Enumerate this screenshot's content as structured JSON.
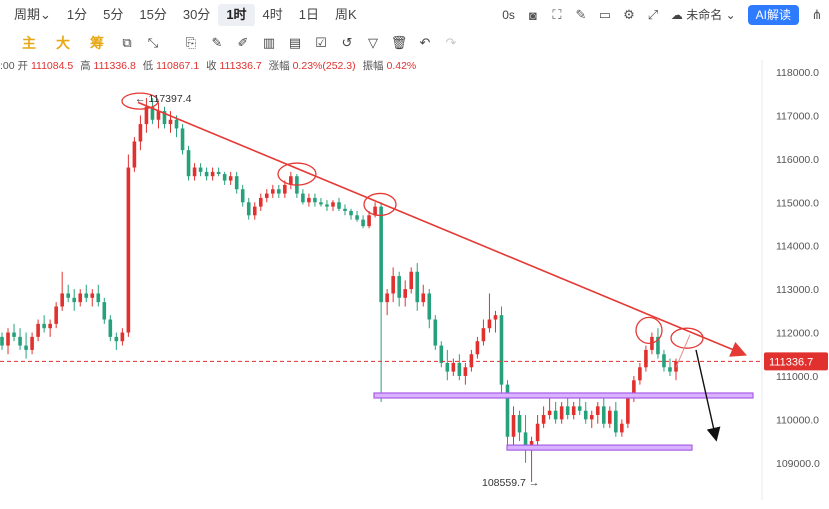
{
  "toolbar": {
    "timeframes": [
      {
        "label": "周期⌄",
        "active": false
      },
      {
        "label": "1分",
        "active": false
      },
      {
        "label": "5分",
        "active": false
      },
      {
        "label": "15分",
        "active": false
      },
      {
        "label": "30分",
        "active": false
      },
      {
        "label": "1时",
        "active": true
      },
      {
        "label": "4时",
        "active": false
      },
      {
        "label": "1日",
        "active": false
      },
      {
        "label": "周K",
        "active": false
      }
    ],
    "delay_label": "0s",
    "layout_name": "未命名",
    "ai_label": "AI解读"
  },
  "indicators": [
    "主",
    "大",
    "筹"
  ],
  "ohlc": {
    "time_prefix": ":00",
    "open_label": "开",
    "open": "111084.5",
    "high_label": "高",
    "high": "111336.8",
    "low_label": "低",
    "low": "110867.1",
    "close_label": "收",
    "close": "111336.7",
    "change_label": "涨幅",
    "change": "0.23%(252.3)",
    "amp_label": "振幅",
    "amp": "0.42%"
  },
  "chart_data": {
    "type": "candlestick",
    "y_ticks": [
      109000,
      110000,
      111000,
      112000,
      113000,
      114000,
      115000,
      116000,
      117000,
      118000
    ],
    "y_tick_labels": [
      "109000.0",
      "110000.0",
      "111000.0",
      "112000.0",
      "113000.0",
      "114000.0",
      "115000.0",
      "116000.0",
      "117000.0",
      "118000.0"
    ],
    "ylim": [
      108250,
      118500
    ],
    "current_price": 111336.7,
    "current_price_label": "111336.7",
    "high_annotation": "← 117397.4",
    "low_annotation": "108559.7 →",
    "colors": {
      "up": "#e0312f",
      "down": "#26a17b",
      "trend": "#e53935",
      "support": "#a85ce6"
    },
    "candles": [
      [
        111900,
        112000,
        111600,
        111700
      ],
      [
        111700,
        112100,
        111500,
        112000
      ],
      [
        112000,
        112200,
        111800,
        111900
      ],
      [
        111900,
        112100,
        111600,
        111700
      ],
      [
        111700,
        112000,
        111400,
        111600
      ],
      [
        111600,
        112000,
        111500,
        111900
      ],
      [
        111900,
        112300,
        111800,
        112200
      ],
      [
        112200,
        112400,
        112000,
        112100
      ],
      [
        112100,
        112300,
        111900,
        112200
      ],
      [
        112200,
        112700,
        112100,
        112600
      ],
      [
        112600,
        113400,
        112500,
        112900
      ],
      [
        112900,
        113100,
        112700,
        112800
      ],
      [
        112800,
        113000,
        112500,
        112700
      ],
      [
        112700,
        113000,
        112600,
        112900
      ],
      [
        112900,
        113100,
        112700,
        112800
      ],
      [
        112800,
        113000,
        112600,
        112900
      ],
      [
        112900,
        113100,
        112600,
        112700
      ],
      [
        112700,
        112800,
        112200,
        112300
      ],
      [
        112300,
        112400,
        111800,
        111900
      ],
      [
        111900,
        112000,
        111600,
        111800
      ],
      [
        111800,
        112100,
        111700,
        112000
      ],
      [
        112000,
        116100,
        111900,
        115800
      ],
      [
        115800,
        116500,
        115700,
        116400
      ],
      [
        116400,
        117000,
        116200,
        116800
      ],
      [
        116800,
        117400,
        116600,
        117200
      ],
      [
        117200,
        117397,
        116800,
        116900
      ],
      [
        116900,
        117300,
        116700,
        117100
      ],
      [
        117100,
        117200,
        116700,
        116800
      ],
      [
        116800,
        117100,
        116600,
        116900
      ],
      [
        116900,
        117000,
        116500,
        116700
      ],
      [
        116700,
        116800,
        116100,
        116200
      ],
      [
        116200,
        116300,
        115500,
        115600
      ],
      [
        115600,
        115900,
        115500,
        115800
      ],
      [
        115800,
        115900,
        115600,
        115700
      ],
      [
        115700,
        115800,
        115500,
        115600
      ],
      [
        115600,
        115800,
        115500,
        115700
      ],
      [
        115700,
        115800,
        115600,
        115650
      ],
      [
        115650,
        115700,
        115400,
        115500
      ],
      [
        115500,
        115700,
        115400,
        115600
      ],
      [
        115600,
        115700,
        115200,
        115300
      ],
      [
        115300,
        115400,
        114900,
        115000
      ],
      [
        115000,
        115100,
        114600,
        114700
      ],
      [
        114700,
        115000,
        114600,
        114900
      ],
      [
        114900,
        115200,
        114800,
        115100
      ],
      [
        115100,
        115300,
        115000,
        115200
      ],
      [
        115200,
        115400,
        115100,
        115300
      ],
      [
        115300,
        115400,
        115100,
        115200
      ],
      [
        115200,
        115500,
        115100,
        115400
      ],
      [
        115400,
        115700,
        115300,
        115600
      ],
      [
        115600,
        115650,
        115100,
        115200
      ],
      [
        115200,
        115300,
        114950,
        115000
      ],
      [
        115000,
        115200,
        114900,
        115100
      ],
      [
        115100,
        115200,
        114900,
        115000
      ],
      [
        115000,
        115100,
        114900,
        114950
      ],
      [
        114950,
        115050,
        114800,
        114900
      ],
      [
        114900,
        115050,
        114800,
        115000
      ],
      [
        115000,
        115100,
        114800,
        114850
      ],
      [
        114850,
        114950,
        114700,
        114800
      ],
      [
        114800,
        114850,
        114600,
        114700
      ],
      [
        114700,
        114800,
        114550,
        114600
      ],
      [
        114600,
        114700,
        114400,
        114450
      ],
      [
        114450,
        114800,
        114400,
        114700
      ],
      [
        114700,
        115000,
        114650,
        114900
      ],
      [
        114900,
        115000,
        110400,
        112700
      ],
      [
        112700,
        113000,
        112400,
        112900
      ],
      [
        112900,
        113500,
        112700,
        113300
      ],
      [
        113300,
        113400,
        112600,
        112800
      ],
      [
        112800,
        113200,
        112600,
        113000
      ],
      [
        113000,
        113500,
        112900,
        113400
      ],
      [
        113400,
        113600,
        112500,
        112700
      ],
      [
        112700,
        113100,
        112600,
        112900
      ],
      [
        112900,
        113000,
        112100,
        112300
      ],
      [
        112300,
        112400,
        111600,
        111700
      ],
      [
        111700,
        111800,
        111200,
        111300
      ],
      [
        111300,
        111600,
        110900,
        111100
      ],
      [
        111100,
        111400,
        111000,
        111300
      ],
      [
        111300,
        111500,
        110900,
        111000
      ],
      [
        111000,
        111300,
        110800,
        111200
      ],
      [
        111200,
        111600,
        111100,
        111500
      ],
      [
        111500,
        111900,
        111400,
        111800
      ],
      [
        111800,
        112300,
        111700,
        112100
      ],
      [
        112100,
        112900,
        112000,
        112300
      ],
      [
        112300,
        112500,
        112000,
        112400
      ],
      [
        112400,
        112600,
        110600,
        110800
      ],
      [
        110800,
        110900,
        109300,
        109600
      ],
      [
        109600,
        110300,
        109400,
        110100
      ],
      [
        110100,
        110200,
        109500,
        109700
      ],
      [
        109700,
        110100,
        109000,
        109300
      ],
      [
        109300,
        109600,
        108560,
        109500
      ],
      [
        109500,
        110100,
        109400,
        109900
      ],
      [
        109900,
        110300,
        109800,
        110100
      ],
      [
        110100,
        110500,
        110000,
        110200
      ],
      [
        110200,
        110400,
        109900,
        110000
      ],
      [
        110000,
        110400,
        109900,
        110300
      ],
      [
        110300,
        110500,
        110000,
        110100
      ],
      [
        110100,
        110400,
        110000,
        110300
      ],
      [
        110300,
        110600,
        110100,
        110200
      ],
      [
        110200,
        110400,
        109900,
        110000
      ],
      [
        110000,
        110200,
        109800,
        110100
      ],
      [
        110100,
        110400,
        109900,
        110300
      ],
      [
        110300,
        110500,
        109800,
        109900
      ],
      [
        109900,
        110300,
        109800,
        110200
      ],
      [
        110200,
        110400,
        109600,
        109700
      ],
      [
        109700,
        110000,
        109600,
        109900
      ],
      [
        109900,
        110600,
        109800,
        110500
      ],
      [
        110500,
        111000,
        110400,
        110900
      ],
      [
        110900,
        111300,
        110800,
        111200
      ],
      [
        111200,
        111700,
        111100,
        111600
      ],
      [
        111600,
        112000,
        111500,
        111900
      ],
      [
        111900,
        112100,
        111400,
        111500
      ],
      [
        111500,
        111600,
        111100,
        111200
      ],
      [
        111200,
        111400,
        111000,
        111100
      ],
      [
        111100,
        111400,
        110900,
        111337
      ]
    ]
  }
}
